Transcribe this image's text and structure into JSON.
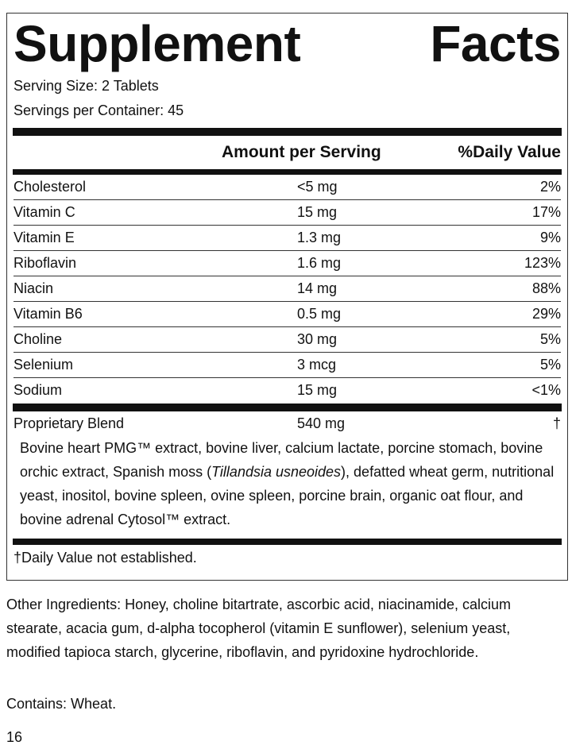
{
  "label": {
    "title": "Supplement Facts",
    "serving_size": "Serving Size: 2 Tablets",
    "servings_per_container": "Servings per Container: 45",
    "header": {
      "amount": "Amount per Serving",
      "daily_value": "%Daily Value"
    },
    "rows": [
      [
        "Cholesterol",
        "<5 mg",
        "2%"
      ],
      [
        "Vitamin C",
        "15 mg",
        "17%"
      ],
      [
        "Vitamin E",
        "1.3 mg",
        "9%"
      ],
      [
        "Riboflavin",
        "1.6 mg",
        "123%"
      ],
      [
        "Niacin",
        "14 mg",
        "88%"
      ],
      [
        "Vitamin B6",
        "0.5 mg",
        "29%"
      ],
      [
        "Choline",
        "30 mg",
        "5%"
      ],
      [
        "Selenium",
        "3 mcg",
        "5%"
      ],
      [
        "Sodium",
        "15 mg",
        "<1%"
      ]
    ],
    "blend": {
      "name": "Proprietary Blend",
      "amount": "540 mg",
      "daily_value": "†",
      "description": [
        "Bovine heart PMG™ extract, bovine liver, calcium lactate, porcine stomach, bovine orchic extract, Spanish moss (",
        "Tillandsia usneoides",
        "), defatted wheat germ, nutritional yeast, inositol, bovine spleen, ovine spleen, porcine brain, organic oat flour, and bovine adrenal Cytosol™ extract."
      ]
    },
    "footnote": "†Daily Value not established."
  },
  "other_ingredients": "Other Ingredients: Honey, choline bitartrate, ascorbic acid, niacinamide, calcium stearate, acacia gum, d-alpha tocopherol (vitamin E sunflower), selenium yeast, modified tapioca starch, glycerine, riboflavin, and pyridoxine hydrochloride.",
  "contains": "Contains: Wheat.",
  "page_number": "16"
}
